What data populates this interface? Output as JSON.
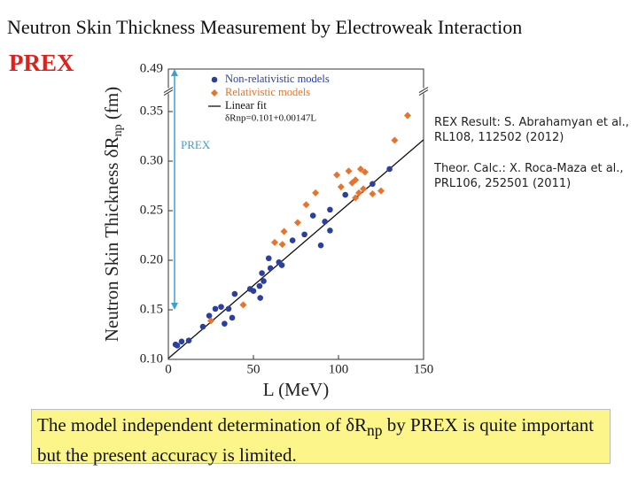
{
  "title": "Neutron Skin Thickness Measurement by Electroweak Interaction",
  "badge": "PREX",
  "references": [
    [
      "REX Result: S. Abrahamyan et al.,",
      "RL108, 112502 (2012)"
    ],
    [
      "Theor. Calc.: X. Roca-Maza et al.,",
      "PRL106, 252501 (2011)"
    ]
  ],
  "note": [
    "The model independent determination of δR",
    "np",
    " by PREX is quite important but the present accuracy is limited."
  ],
  "chart_data": {
    "type": "scatter",
    "xlabel": "L (MeV)",
    "ylabel": [
      "Neutron Skin Thickness δR",
      "np",
      " (fm)"
    ],
    "xlim": [
      0,
      150
    ],
    "xticks": [
      0,
      50,
      100,
      150
    ],
    "ylim": [
      0.1,
      0.49
    ],
    "y_break": 0.37,
    "yticks": [
      {
        "value": 0.1,
        "label": "0.10"
      },
      0.15,
      {
        "value": 0.2,
        "label": "0.20"
      },
      0.25,
      {
        "value": 0.3,
        "label": "0.30"
      },
      0.35,
      0.49
    ],
    "legend": "upper left",
    "series": [
      {
        "name": "Non-relativistic models",
        "color": "#2a3f9e",
        "marker": "circle",
        "x": [
          4.2,
          7.8,
          12,
          5.2,
          20.3,
          24,
          27.6,
          31,
          35.4,
          37.5,
          33,
          39,
          48,
          53.6,
          56,
          60,
          65,
          66.7,
          59,
          55,
          73,
          80,
          85,
          95,
          92,
          95,
          104,
          120,
          130,
          89.6,
          54,
          50
        ],
        "values": [
          0.115,
          0.118,
          0.119,
          0.114,
          0.133,
          0.144,
          0.151,
          0.153,
          0.151,
          0.142,
          0.136,
          0.166,
          0.171,
          0.174,
          0.179,
          0.192,
          0.198,
          0.195,
          0.202,
          0.187,
          0.22,
          0.226,
          0.245,
          0.251,
          0.239,
          0.23,
          0.266,
          0.277,
          0.292,
          0.215,
          0.162,
          0.169
        ]
      },
      {
        "name": "Relativistic models",
        "color": "#e8732a",
        "marker": "diamond",
        "x": [
          25,
          44,
          62.5,
          67,
          68,
          76,
          81,
          86.5,
          99,
          101.5,
          106,
          108,
          110,
          113,
          115.6,
          112,
          114.6,
          120,
          125,
          133,
          140.6,
          110
        ],
        "values": [
          0.139,
          0.155,
          0.218,
          0.216,
          0.229,
          0.238,
          0.256,
          0.268,
          0.286,
          0.274,
          0.29,
          0.278,
          0.281,
          0.292,
          0.289,
          0.268,
          0.272,
          0.267,
          0.27,
          0.321,
          0.346,
          0.263
        ]
      }
    ],
    "fit": {
      "name": "Linear fit",
      "equation": "δRnp=0.101+0.00147L",
      "intercept": 0.101,
      "slope": 0.00147,
      "color": "#111111"
    },
    "prex": {
      "label": "PREX",
      "range": [
        0.15,
        0.49
      ],
      "color": "#3aa0d8"
    }
  }
}
